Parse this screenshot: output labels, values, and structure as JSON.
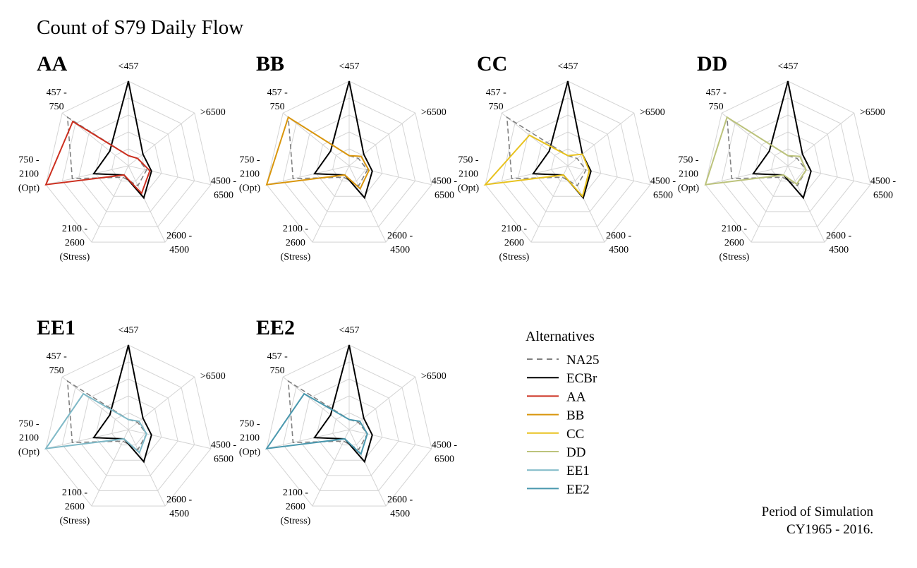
{
  "title": "Count of S79 Daily Flow",
  "note": {
    "line1": "Period of Simulation",
    "line2": "CY1965 - 2016."
  },
  "legend": {
    "title": "Alternatives",
    "items": [
      {
        "label": "NA25",
        "color": "#808080",
        "dash": true
      },
      {
        "label": "ECBr",
        "color": "#000000",
        "dash": false
      },
      {
        "label": "AA",
        "color": "#cc2f1f",
        "dash": false
      },
      {
        "label": "BB",
        "color": "#d9960d",
        "dash": false
      },
      {
        "label": "CC",
        "color": "#e8c21e",
        "dash": false
      },
      {
        "label": "DD",
        "color": "#bcc37c",
        "dash": false
      },
      {
        "label": "EE1",
        "color": "#7fb9c7",
        "dash": false
      },
      {
        "label": "EE2",
        "color": "#4a98ae",
        "dash": false
      }
    ]
  },
  "chart_data": {
    "type": "radar",
    "axes": [
      {
        "lines": [
          "<457"
        ]
      },
      {
        "lines": [
          ">6500"
        ]
      },
      {
        "lines": [
          "4500 -",
          "6500"
        ]
      },
      {
        "lines": [
          "2600 -",
          "4500"
        ]
      },
      {
        "lines": [
          "2100 -",
          "2600",
          "(Stress)"
        ]
      },
      {
        "lines": [
          "750 -",
          "2100",
          "(Opt)"
        ]
      },
      {
        "lines": [
          "457 -",
          "750"
        ]
      }
    ],
    "rmax": 1.0,
    "grid_rings": 5,
    "baselines": [
      {
        "name": "NA25",
        "values": [
          0.12,
          0.14,
          0.22,
          0.26,
          0.15,
          0.68,
          0.92
        ]
      },
      {
        "name": "ECBr",
        "values": [
          1.0,
          0.22,
          0.28,
          0.42,
          0.12,
          0.42,
          0.28
        ]
      }
    ],
    "panels": [
      {
        "title": "AA",
        "series": "AA",
        "values": [
          0.12,
          0.14,
          0.26,
          0.36,
          0.12,
          1.0,
          0.84
        ]
      },
      {
        "title": "BB",
        "series": "BB",
        "values": [
          0.12,
          0.18,
          0.24,
          0.3,
          0.12,
          1.0,
          0.92
        ]
      },
      {
        "title": "CC",
        "series": "CC",
        "values": [
          0.12,
          0.22,
          0.26,
          0.4,
          0.12,
          1.0,
          0.58
        ]
      },
      {
        "title": "DD",
        "series": "DD",
        "values": [
          0.12,
          0.18,
          0.22,
          0.24,
          0.12,
          1.0,
          0.92
        ]
      },
      {
        "title": "EE1",
        "series": "EE1",
        "values": [
          0.12,
          0.16,
          0.22,
          0.3,
          0.12,
          1.0,
          0.68
        ]
      },
      {
        "title": "EE2",
        "series": "EE2",
        "values": [
          0.12,
          0.16,
          0.22,
          0.32,
          0.12,
          1.0,
          0.68
        ]
      }
    ]
  }
}
